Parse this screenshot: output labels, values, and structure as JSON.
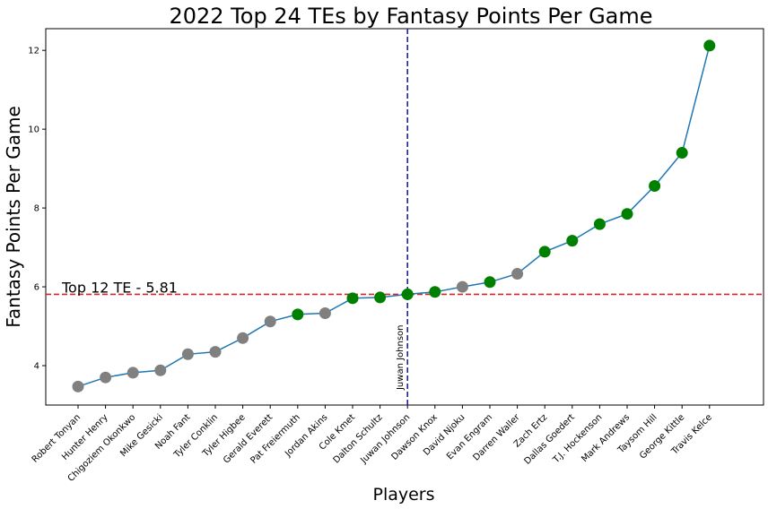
{
  "chart_data": {
    "type": "line",
    "title": "2022 Top 24 TEs by Fantasy Points Per Game",
    "xlabel": "Players",
    "ylabel": "Fantasy Points Per Game",
    "categories": [
      "Robert Tonyan",
      "Hunter Henry",
      "Chigoziem Okonkwo",
      "Mike Gesicki",
      "Noah Fant",
      "Tyler Conklin",
      "Tyler Higbee",
      "Gerald Everett",
      "Pat Freiermuth",
      "Jordan Akins",
      "Cole Kmet",
      "Dalton Schultz",
      "Juwan Johnson",
      "Dawson Knox",
      "David Njoku",
      "Evan Engram",
      "Darren Waller",
      "Zach Ertz",
      "Dallas Goedert",
      "T.J. Hockenson",
      "Mark Andrews",
      "Taysom Hill",
      "George Kittle",
      "Travis Kelce"
    ],
    "values": [
      3.47,
      3.7,
      3.82,
      3.88,
      4.29,
      4.35,
      4.7,
      5.12,
      5.3,
      5.33,
      5.71,
      5.73,
      5.81,
      5.87,
      6.0,
      6.12,
      6.33,
      6.89,
      7.17,
      7.59,
      7.85,
      8.56,
      9.4,
      12.12
    ],
    "marker_status": [
      "gray",
      "gray",
      "gray",
      "gray",
      "gray",
      "gray",
      "gray",
      "gray",
      "green",
      "gray",
      "green",
      "green",
      "green",
      "green",
      "gray",
      "green",
      "gray",
      "green",
      "green",
      "green",
      "green",
      "green",
      "green",
      "green"
    ],
    "ylim": [
      3.0,
      12.55
    ],
    "yticks": [
      4,
      6,
      8,
      10,
      12
    ],
    "grid": false,
    "reference_line": {
      "y": 5.81,
      "label": "Top 12 TE - 5.81",
      "color": "#d62728"
    },
    "vertical_line": {
      "category": "Juwan Johnson",
      "label": "Juwan Johnson",
      "color": "#1f1fb4"
    },
    "colors": {
      "line": "#1f77b4",
      "green": "#008000",
      "gray": "#808080"
    }
  }
}
